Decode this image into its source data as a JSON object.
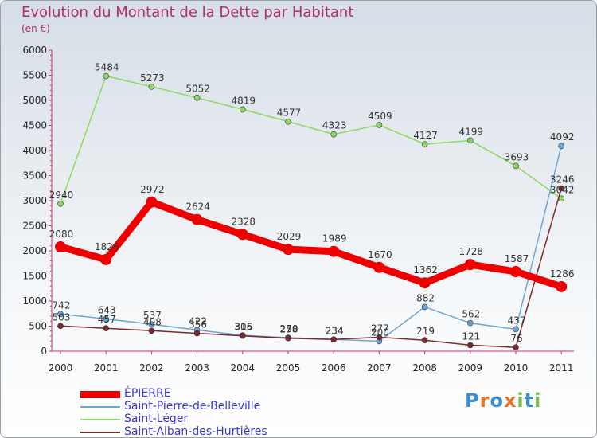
{
  "header": {
    "title": "Evolution du Montant de la Dette par Habitant",
    "subtitle": "(en €)"
  },
  "logo": {
    "letters": [
      "P",
      "r",
      "o",
      "x",
      "i",
      "t",
      "i"
    ],
    "colors": [
      "#3a8fd0",
      "#e8742a",
      "#3a8fd0",
      "#e8742a",
      "#7cc04a",
      "#3a8fd0",
      "#7cc04a"
    ]
  },
  "chart_data": {
    "type": "line",
    "title": "Evolution du Montant de la Dette par Habitant",
    "subtitle": "(en €)",
    "xlabel": "",
    "ylabel": "",
    "categories": [
      "2000",
      "2001",
      "2002",
      "2003",
      "2004",
      "2005",
      "2006",
      "2007",
      "2008",
      "2009",
      "2010",
      "2011"
    ],
    "ylim": [
      0,
      6000
    ],
    "yticks": [
      0,
      500,
      1000,
      1500,
      2000,
      2500,
      3000,
      3500,
      4000,
      4500,
      5000,
      5500,
      6000
    ],
    "grid": false,
    "legend_position": "bottom",
    "series": [
      {
        "name": "ÉPIERRE",
        "color": "#ee0000",
        "width": 9,
        "values": [
          2080,
          1826,
          2972,
          2624,
          2328,
          2029,
          1989,
          1670,
          1362,
          1728,
          1587,
          1286
        ]
      },
      {
        "name": "Saint-Pierre-de-Belleville",
        "color": "#6aa6d8",
        "width": 1.5,
        "values": [
          742,
          643,
          537,
          422,
          315,
          270,
          234,
          200,
          882,
          562,
          437,
          4092
        ]
      },
      {
        "name": "Saint-Léger",
        "color": "#8cd860",
        "width": 1.5,
        "values": [
          2940,
          5484,
          5273,
          5052,
          4819,
          4577,
          4323,
          4509,
          4127,
          4199,
          3693,
          3042
        ]
      },
      {
        "name": "Saint-Alban-des-Hurtières",
        "color": "#7a2a2a",
        "width": 1.5,
        "values": [
          503,
          457,
          408,
          356,
          306,
          258,
          234,
          277,
          219,
          121,
          76,
          3246
        ]
      }
    ]
  }
}
